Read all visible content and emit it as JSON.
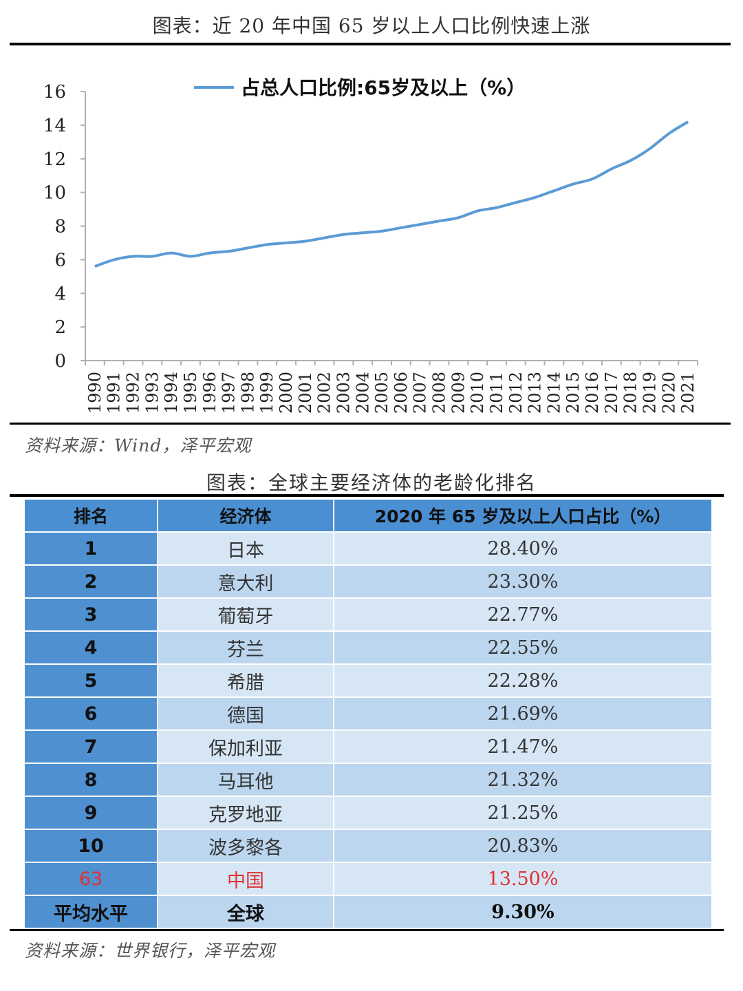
{
  "chart_section": {
    "title": "图表：近 20 年中国 65 岁以上人口比例快速上涨",
    "source": "资料来源：Wind，泽平宏观"
  },
  "chart_data": {
    "type": "line",
    "legend": "占总人口比例:65岁及以上（%）",
    "legend_position": "top-center",
    "grid": false,
    "ylim": [
      0,
      16
    ],
    "yticks": [
      "0",
      "2",
      "4",
      "6",
      "8",
      "10",
      "12",
      "14",
      "16"
    ],
    "x": [
      "1990",
      "1991",
      "1992",
      "1993",
      "1994",
      "1995",
      "1996",
      "1997",
      "1998",
      "1999",
      "2000",
      "2001",
      "2002",
      "2003",
      "2004",
      "2005",
      "2006",
      "2007",
      "2008",
      "2009",
      "2010",
      "2011",
      "2012",
      "2013",
      "2014",
      "2015",
      "2016",
      "2017",
      "2018",
      "2019",
      "2020",
      "2021"
    ],
    "series": [
      {
        "name": "占总人口比例:65岁及以上（%）",
        "color": "#5b9bd5",
        "values": [
          5.6,
          6.0,
          6.2,
          6.2,
          6.4,
          6.2,
          6.4,
          6.5,
          6.7,
          6.9,
          7.0,
          7.1,
          7.3,
          7.5,
          7.6,
          7.7,
          7.9,
          8.1,
          8.3,
          8.5,
          8.9,
          9.1,
          9.4,
          9.7,
          10.1,
          10.5,
          10.8,
          11.4,
          11.9,
          12.6,
          13.5,
          14.2
        ]
      }
    ]
  },
  "table_section": {
    "title": "图表：全球主要经济体的老龄化排名",
    "source": "资料来源：世界银行，泽平宏观",
    "headers": [
      "排名",
      "经济体",
      "2020 年 65 岁及以上人口占比（%）"
    ],
    "rows": [
      {
        "rank": "1",
        "economy": "日本",
        "pct": "28.40%"
      },
      {
        "rank": "2",
        "economy": "意大利",
        "pct": "23.30%"
      },
      {
        "rank": "3",
        "economy": "葡萄牙",
        "pct": "22.77%"
      },
      {
        "rank": "4",
        "economy": "芬兰",
        "pct": "22.55%"
      },
      {
        "rank": "5",
        "economy": "希腊",
        "pct": "22.28%"
      },
      {
        "rank": "6",
        "economy": "德国",
        "pct": "21.69%"
      },
      {
        "rank": "7",
        "economy": "保加利亚",
        "pct": "21.47%"
      },
      {
        "rank": "8",
        "economy": "马耳他",
        "pct": "21.32%"
      },
      {
        "rank": "9",
        "economy": "克罗地亚",
        "pct": "21.25%"
      },
      {
        "rank": "10",
        "economy": "波多黎各",
        "pct": "20.83%"
      },
      {
        "rank": "63",
        "economy": "中国",
        "pct": "13.50%"
      },
      {
        "rank": "平均水平",
        "economy": "全球",
        "pct": "9.30%"
      }
    ],
    "highlight_color": "#e03030"
  }
}
